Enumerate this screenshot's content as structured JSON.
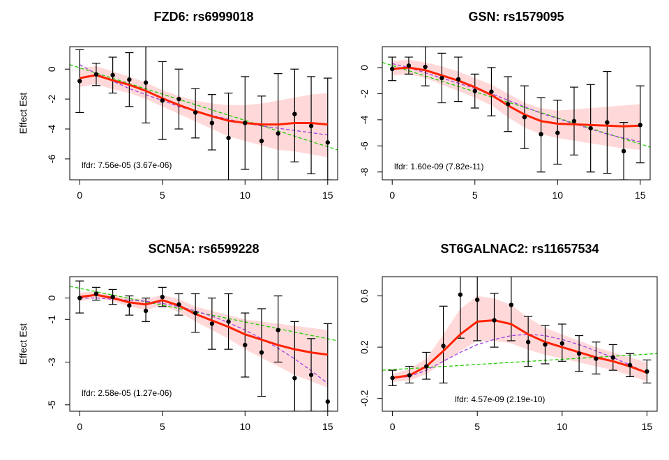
{
  "chart_data": [
    {
      "type": "scatter",
      "title": "FZD6: rs6999018",
      "ylabel": "Effect Est",
      "xlabel": "",
      "xlim": [
        -0.6,
        15.6
      ],
      "ylim": [
        -7.4,
        1.5
      ],
      "xticks": [
        "0",
        "5",
        "10",
        "15"
      ],
      "yticks": [
        "0",
        "-2",
        "-4",
        "-6"
      ],
      "annotation": "lfdr: 7.56e-05 (3.67e-06)",
      "points": [
        {
          "x": 0,
          "y": -0.8,
          "lo": -2.9,
          "hi": 1.3
        },
        {
          "x": 1,
          "y": -0.35,
          "lo": -1.1,
          "hi": 0.4
        },
        {
          "x": 2,
          "y": -0.4,
          "lo": -1.6,
          "hi": 0.8
        },
        {
          "x": 3,
          "y": -0.7,
          "lo": -2.5,
          "hi": 1.1
        },
        {
          "x": 4,
          "y": -0.9,
          "lo": -3.6,
          "hi": 1.8
        },
        {
          "x": 5,
          "y": -2.1,
          "lo": -4.7,
          "hi": 0.5
        },
        {
          "x": 6,
          "y": -2.0,
          "lo": -4.0,
          "hi": 0.0
        },
        {
          "x": 7,
          "y": -2.9,
          "lo": -4.6,
          "hi": -1.3
        },
        {
          "x": 8,
          "y": -3.6,
          "lo": -5.4,
          "hi": -1.7
        },
        {
          "x": 9,
          "y": -4.6,
          "lo": -7.6,
          "hi": -1.6
        },
        {
          "x": 10,
          "y": -3.6,
          "lo": -6.7,
          "hi": -0.5
        },
        {
          "x": 11,
          "y": -4.8,
          "lo": -7.6,
          "hi": -1.8
        },
        {
          "x": 12,
          "y": -4.3,
          "lo": -8.3,
          "hi": -0.3
        },
        {
          "x": 13,
          "y": -3.0,
          "lo": -6.2,
          "hi": 0.0
        },
        {
          "x": 14,
          "y": -3.8,
          "lo": -7.0,
          "hi": -0.5
        },
        {
          "x": 15,
          "y": -4.9,
          "lo": -7.4,
          "hi": -0.6
        }
      ],
      "fit": [
        -0.6,
        -0.4,
        -0.75,
        -1.05,
        -1.45,
        -1.95,
        -2.4,
        -2.8,
        -3.15,
        -3.45,
        -3.6,
        -3.7,
        -3.7,
        -3.6,
        -3.6,
        -3.7
      ],
      "band": [
        {
          "lo": -1.2,
          "hi": 0.05
        },
        {
          "lo": -1.0,
          "hi": 0.2
        },
        {
          "lo": -1.35,
          "hi": -0.15
        },
        {
          "lo": -1.6,
          "hi": -0.5
        },
        {
          "lo": -2.0,
          "hi": -0.9
        },
        {
          "lo": -2.5,
          "hi": -1.4
        },
        {
          "lo": -3.0,
          "hi": -1.8
        },
        {
          "lo": -3.5,
          "hi": -2.1
        },
        {
          "lo": -4.0,
          "hi": -2.3
        },
        {
          "lo": -4.5,
          "hi": -2.4
        },
        {
          "lo": -4.8,
          "hi": -2.4
        },
        {
          "lo": -5.1,
          "hi": -2.3
        },
        {
          "lo": -5.4,
          "hi": -2.1
        },
        {
          "lo": -5.5,
          "hi": -1.9
        },
        {
          "lo": -5.7,
          "hi": -1.7
        },
        {
          "lo": -5.9,
          "hi": -1.6
        }
      ],
      "green_line": {
        "x0": -0.6,
        "y0": 0.3,
        "x1": 15.6,
        "y1": -5.4
      },
      "purple_curve": [
        0.3,
        -0.3,
        -0.8,
        -1.3,
        -1.7,
        -2.1,
        -2.5,
        -2.8,
        -3.1,
        -3.35,
        -3.6,
        -3.8,
        -3.95,
        -4.1,
        -4.25,
        -4.4
      ]
    },
    {
      "type": "scatter",
      "title": "GSN: rs1579095",
      "ylabel": "",
      "xlabel": "",
      "xlim": [
        -0.6,
        15.6
      ],
      "ylim": [
        -8.6,
        1.6
      ],
      "xticks": [
        "0",
        "5",
        "10",
        "15"
      ],
      "yticks": [
        "0",
        "-2",
        "-4",
        "-6",
        "-8"
      ],
      "annotation": "lfdr: 1.60e-09 (7.82e-11)",
      "points": [
        {
          "x": 0,
          "y": -0.1,
          "lo": -1.0,
          "hi": 0.8
        },
        {
          "x": 1,
          "y": 0.15,
          "lo": -0.5,
          "hi": 0.8
        },
        {
          "x": 2,
          "y": 0.05,
          "lo": -1.4,
          "hi": 1.6
        },
        {
          "x": 3,
          "y": -0.8,
          "lo": -2.7,
          "hi": 1.1
        },
        {
          "x": 4,
          "y": -0.9,
          "lo": -2.6,
          "hi": 0.8
        },
        {
          "x": 5,
          "y": -1.8,
          "lo": -3.1,
          "hi": -0.5
        },
        {
          "x": 6,
          "y": -1.85,
          "lo": -3.7,
          "hi": 0.0
        },
        {
          "x": 7,
          "y": -2.8,
          "lo": -4.9,
          "hi": -0.7
        },
        {
          "x": 8,
          "y": -3.8,
          "lo": -6.2,
          "hi": -1.4
        },
        {
          "x": 9,
          "y": -5.1,
          "lo": -8.0,
          "hi": -2.3
        },
        {
          "x": 10,
          "y": -5.0,
          "lo": -7.4,
          "hi": -2.5
        },
        {
          "x": 11,
          "y": -4.1,
          "lo": -6.7,
          "hi": -1.5
        },
        {
          "x": 12,
          "y": -4.65,
          "lo": -8.0,
          "hi": -1.3
        },
        {
          "x": 13,
          "y": -4.2,
          "lo": -8.1,
          "hi": -0.3
        },
        {
          "x": 14,
          "y": -6.4,
          "lo": -8.6,
          "hi": -4.2
        },
        {
          "x": 15,
          "y": -4.4,
          "lo": -7.3,
          "hi": -1.4
        }
      ],
      "fit": [
        -0.1,
        0.0,
        -0.2,
        -0.6,
        -1.0,
        -1.5,
        -2.1,
        -2.9,
        -3.6,
        -4.1,
        -4.3,
        -4.35,
        -4.4,
        -4.45,
        -4.5,
        -4.45
      ],
      "band": [
        {
          "lo": -0.6,
          "hi": 0.5
        },
        {
          "lo": -0.5,
          "hi": 0.6
        },
        {
          "lo": -0.8,
          "hi": 0.4
        },
        {
          "lo": -1.3,
          "hi": 0.1
        },
        {
          "lo": -1.8,
          "hi": -0.3
        },
        {
          "lo": -2.3,
          "hi": -0.8
        },
        {
          "lo": -2.9,
          "hi": -1.3
        },
        {
          "lo": -3.8,
          "hi": -2.0
        },
        {
          "lo": -4.6,
          "hi": -2.7
        },
        {
          "lo": -5.1,
          "hi": -3.1
        },
        {
          "lo": -5.4,
          "hi": -3.3
        },
        {
          "lo": -5.6,
          "hi": -3.2
        },
        {
          "lo": -5.8,
          "hi": -3.1
        },
        {
          "lo": -6.0,
          "hi": -3.0
        },
        {
          "lo": -6.2,
          "hi": -2.9
        },
        {
          "lo": -6.3,
          "hi": -2.8
        }
      ],
      "green_line": {
        "x0": -0.6,
        "y0": 0.4,
        "x1": 15.6,
        "y1": -6.1
      },
      "purple_curve": [
        0.3,
        0.0,
        -0.4,
        -0.8,
        -1.2,
        -1.6,
        -2.0,
        -2.5,
        -3.0,
        -3.5,
        -3.9,
        -4.3,
        -4.7,
        -5.1,
        -5.4,
        -5.7
      ]
    },
    {
      "type": "scatter",
      "title": "SCN5A: rs6599228",
      "ylabel": "Effect Est",
      "xlabel": "",
      "xlim": [
        -0.6,
        15.6
      ],
      "ylim": [
        -5.3,
        1.0
      ],
      "xticks": [
        "0",
        "5",
        "10",
        "15"
      ],
      "yticks": [
        "0",
        "-1",
        "-3",
        "-5"
      ],
      "annotation": "lfdr: 2.58e-05 (1.27e-06)",
      "points": [
        {
          "x": 0,
          "y": 0.0,
          "lo": -0.7,
          "hi": 0.8
        },
        {
          "x": 1,
          "y": 0.2,
          "lo": -0.1,
          "hi": 0.5
        },
        {
          "x": 2,
          "y": 0.05,
          "lo": -0.3,
          "hi": 0.4
        },
        {
          "x": 3,
          "y": -0.35,
          "lo": -0.8,
          "hi": 0.1
        },
        {
          "x": 4,
          "y": -0.6,
          "lo": -1.1,
          "hi": 0.0
        },
        {
          "x": 5,
          "y": 0.05,
          "lo": -0.4,
          "hi": 0.5
        },
        {
          "x": 6,
          "y": -0.3,
          "lo": -0.8,
          "hi": 0.2
        },
        {
          "x": 7,
          "y": -0.7,
          "lo": -1.6,
          "hi": 0.2
        },
        {
          "x": 8,
          "y": -1.2,
          "lo": -2.4,
          "hi": 0.0
        },
        {
          "x": 9,
          "y": -1.1,
          "lo": -2.4,
          "hi": 0.2
        },
        {
          "x": 10,
          "y": -2.2,
          "lo": -3.7,
          "hi": -0.7
        },
        {
          "x": 11,
          "y": -2.55,
          "lo": -4.6,
          "hi": -0.5
        },
        {
          "x": 12,
          "y": -1.5,
          "lo": -3.0,
          "hi": 0.1
        },
        {
          "x": 13,
          "y": -3.75,
          "lo": -5.3,
          "hi": -1.1
        },
        {
          "x": 14,
          "y": -3.6,
          "lo": -5.3,
          "hi": -1.9
        },
        {
          "x": 15,
          "y": -4.85,
          "lo": -5.3,
          "hi": -1.2
        }
      ],
      "fit": [
        0.05,
        0.15,
        0.0,
        -0.2,
        -0.3,
        -0.1,
        -0.35,
        -0.75,
        -1.05,
        -1.35,
        -1.7,
        -1.95,
        -2.2,
        -2.4,
        -2.55,
        -2.65
      ],
      "band": [
        {
          "lo": -0.15,
          "hi": 0.25
        },
        {
          "lo": 0.0,
          "hi": 0.3
        },
        {
          "lo": -0.15,
          "hi": 0.15
        },
        {
          "lo": -0.4,
          "hi": 0.0
        },
        {
          "lo": -0.55,
          "hi": -0.05
        },
        {
          "lo": -0.35,
          "hi": 0.15
        },
        {
          "lo": -0.65,
          "hi": -0.05
        },
        {
          "lo": -1.1,
          "hi": -0.4
        },
        {
          "lo": -1.5,
          "hi": -0.6
        },
        {
          "lo": -1.9,
          "hi": -0.8
        },
        {
          "lo": -2.4,
          "hi": -1.0
        },
        {
          "lo": -2.8,
          "hi": -1.1
        },
        {
          "lo": -3.2,
          "hi": -1.2
        },
        {
          "lo": -3.6,
          "hi": -1.3
        },
        {
          "lo": -3.9,
          "hi": -1.4
        },
        {
          "lo": -4.2,
          "hi": -1.5
        }
      ],
      "green_line": {
        "x0": -0.6,
        "y0": 0.55,
        "x1": 15.6,
        "y1": -2.0
      },
      "purple_curve": [
        0.0,
        0.0,
        -0.05,
        -0.1,
        -0.15,
        -0.25,
        -0.4,
        -0.6,
        -0.85,
        -1.15,
        -1.5,
        -1.9,
        -2.35,
        -2.85,
        -3.4,
        -4.0
      ]
    },
    {
      "type": "scatter",
      "title": "ST6GALNAC2: rs11657534",
      "ylabel": "",
      "xlabel": "",
      "xlim": [
        -0.6,
        15.6
      ],
      "ylim": [
        -0.3,
        0.75
      ],
      "xticks": [
        "0",
        "5",
        "10",
        "15"
      ],
      "yticks": [
        "0.6",
        "0.2",
        "-0.2"
      ],
      "annotation": "lfdr: 4.57e-09 (2.19e-10)",
      "points": [
        {
          "x": 0,
          "y": -0.04,
          "lo": -0.1,
          "hi": 0.02
        },
        {
          "x": 1,
          "y": -0.02,
          "lo": -0.08,
          "hi": 0.05
        },
        {
          "x": 2,
          "y": 0.05,
          "lo": -0.05,
          "hi": 0.16
        },
        {
          "x": 3,
          "y": 0.21,
          "lo": -0.08,
          "hi": 0.52
        },
        {
          "x": 4,
          "y": 0.61,
          "lo": 0.27,
          "hi": 0.95
        },
        {
          "x": 5,
          "y": 0.57,
          "lo": 0.25,
          "hi": 0.9
        },
        {
          "x": 6,
          "y": 0.41,
          "lo": 0.2,
          "hi": 0.62
        },
        {
          "x": 7,
          "y": 0.53,
          "lo": 0.25,
          "hi": 0.82
        },
        {
          "x": 8,
          "y": 0.24,
          "lo": 0.05,
          "hi": 0.44
        },
        {
          "x": 9,
          "y": 0.22,
          "lo": 0.07,
          "hi": 0.37
        },
        {
          "x": 10,
          "y": 0.23,
          "lo": 0.09,
          "hi": 0.38
        },
        {
          "x": 11,
          "y": 0.15,
          "lo": 0.01,
          "hi": 0.29
        },
        {
          "x": 12,
          "y": 0.11,
          "lo": -0.01,
          "hi": 0.24
        },
        {
          "x": 13,
          "y": 0.12,
          "lo": 0.02,
          "hi": 0.22
        },
        {
          "x": 14,
          "y": 0.06,
          "lo": -0.03,
          "hi": 0.15
        },
        {
          "x": 15,
          "y": 0.01,
          "lo": -0.08,
          "hi": 0.1
        }
      ],
      "fit": [
        -0.04,
        -0.02,
        0.05,
        0.17,
        0.3,
        0.4,
        0.41,
        0.38,
        0.3,
        0.24,
        0.2,
        0.16,
        0.12,
        0.09,
        0.05,
        0.0
      ],
      "band": [
        {
          "lo": -0.07,
          "hi": -0.01
        },
        {
          "lo": -0.06,
          "hi": 0.03
        },
        {
          "lo": -0.01,
          "hi": 0.11
        },
        {
          "lo": 0.08,
          "hi": 0.3
        },
        {
          "lo": 0.17,
          "hi": 0.5
        },
        {
          "lo": 0.25,
          "hi": 0.6
        },
        {
          "lo": 0.25,
          "hi": 0.58
        },
        {
          "lo": 0.23,
          "hi": 0.53
        },
        {
          "lo": 0.18,
          "hi": 0.43
        },
        {
          "lo": 0.14,
          "hi": 0.35
        },
        {
          "lo": 0.11,
          "hi": 0.3
        },
        {
          "lo": 0.08,
          "hi": 0.25
        },
        {
          "lo": 0.05,
          "hi": 0.2
        },
        {
          "lo": 0.02,
          "hi": 0.16
        },
        {
          "lo": -0.02,
          "hi": 0.12
        },
        {
          "lo": -0.07,
          "hi": 0.08
        }
      ],
      "green_line": {
        "x0": -0.6,
        "y0": 0.02,
        "x1": 15.6,
        "y1": 0.15
      },
      "purple_curve": [
        -0.04,
        -0.03,
        0.02,
        0.09,
        0.16,
        0.22,
        0.26,
        0.29,
        0.3,
        0.29,
        0.26,
        0.22,
        0.17,
        0.12,
        0.06,
        0.0
      ]
    }
  ],
  "colors": {
    "fit": "#ff2200",
    "band": "#ffcccc",
    "green": "#22cc00",
    "purple": "#a040e0",
    "point": "#000000"
  }
}
